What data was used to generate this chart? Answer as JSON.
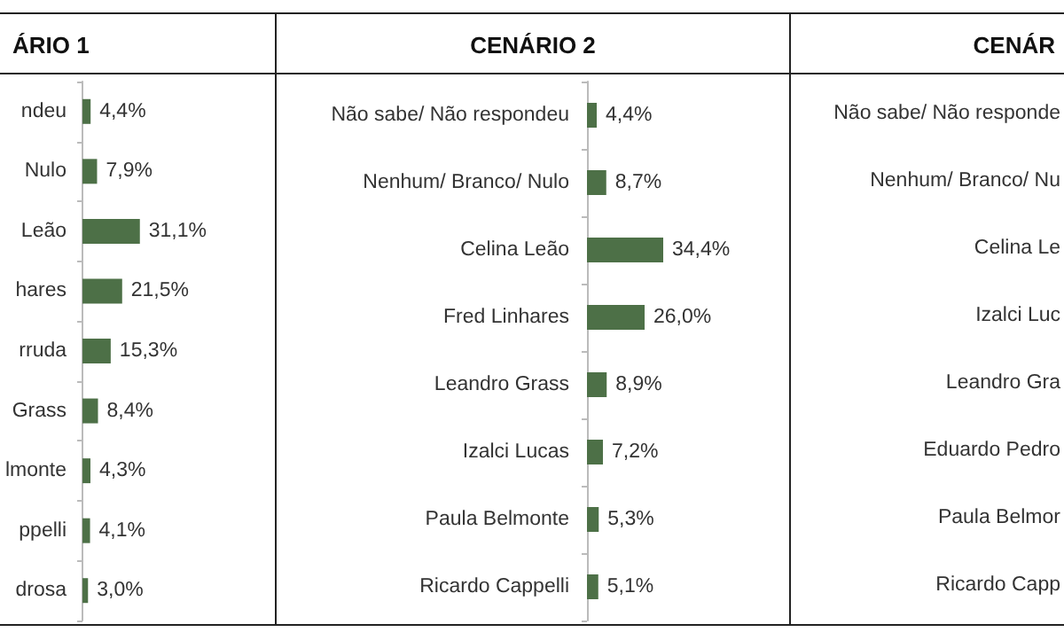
{
  "chart_data": [
    {
      "type": "bar",
      "orientation": "horizontal",
      "title": "ÁRIO 1",
      "categories": [
        "ndeu",
        "Nulo",
        "Leão",
        "hares",
        "rruda",
        "Grass",
        "lmonte",
        "ppelli",
        "drosa"
      ],
      "values": [
        4.4,
        7.9,
        31.1,
        21.5,
        15.3,
        8.4,
        4.3,
        4.1,
        3.0
      ],
      "value_labels": [
        "4,4%",
        "7,9%",
        "31,1%",
        "21,5%",
        "15,3%",
        "8,4%",
        "4,3%",
        "4,1%",
        "3,0%"
      ],
      "color": "#4d7047"
    },
    {
      "type": "bar",
      "orientation": "horizontal",
      "title": "CENÁRIO 2",
      "categories": [
        "Não sabe/ Não respondeu",
        "Nenhum/ Branco/ Nulo",
        "Celina Leão",
        "Fred Linhares",
        "Leandro Grass",
        "Izalci Lucas",
        "Paula Belmonte",
        "Ricardo Cappelli"
      ],
      "values": [
        4.4,
        8.7,
        34.4,
        26.0,
        8.9,
        7.2,
        5.3,
        5.1
      ],
      "value_labels": [
        "4,4%",
        "8,7%",
        "34,4%",
        "26,0%",
        "8,9%",
        "7,2%",
        "5,3%",
        "5,1%"
      ],
      "color": "#4d7047"
    },
    {
      "type": "other",
      "title": "CENÁR",
      "annotations": [
        "Não sabe/ Não responde",
        "Nenhum/ Branco/ Nu",
        "Celina Le",
        "Izalci Luc",
        "Leandro Gra",
        "Eduardo Pedro",
        "Paula Belmor",
        "Ricardo Capp"
      ]
    }
  ]
}
